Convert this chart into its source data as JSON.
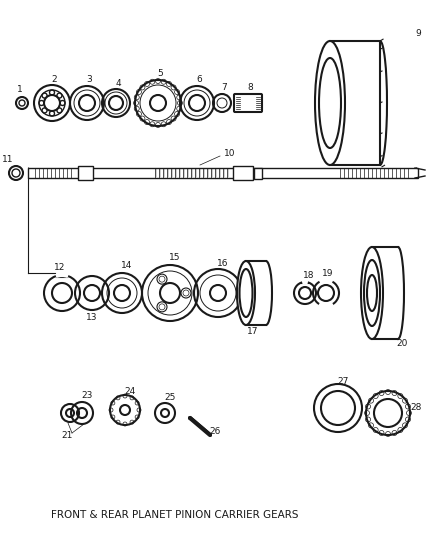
{
  "title": "FRONT & REAR PLANET PINION CARRIER GEARS",
  "background_color": "#ffffff",
  "line_color": "#1a1a1a",
  "figsize": [
    4.38,
    5.33
  ],
  "dpi": 100
}
